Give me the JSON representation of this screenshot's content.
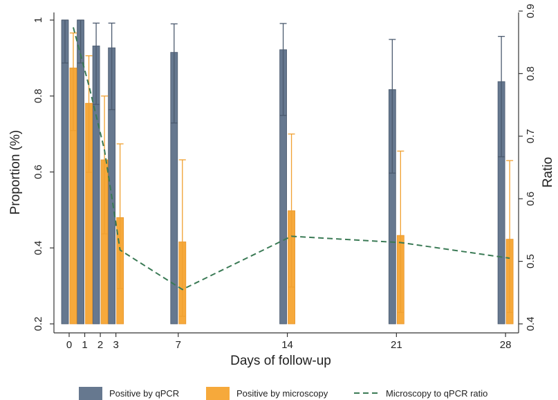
{
  "chart_data": {
    "type": "bar",
    "categories": [
      "0",
      "1",
      "2",
      "3",
      "7",
      "14",
      "21",
      "28"
    ],
    "x_positions": [
      0,
      1,
      2,
      3,
      7,
      14,
      21,
      28
    ],
    "xlabel": "Days of follow-up",
    "ylabel": "Proportion (%)",
    "y2label": "Ratio",
    "ylim": [
      0.2,
      1.0
    ],
    "y2lim": [
      0.4,
      0.9
    ],
    "yticks": [
      "0.2",
      "0.4",
      "0.6",
      "0.8",
      "1"
    ],
    "y2ticks": [
      "0.4",
      "0.5",
      "0.6",
      "0.7",
      "0.8",
      "0.9"
    ],
    "series": [
      {
        "name": "Positive by qPCR",
        "type": "bar",
        "axis": "left",
        "color": "#66788f",
        "values": [
          1.0,
          1.0,
          0.932,
          0.927,
          0.915,
          0.922,
          0.817,
          0.838
        ],
        "ci_low": [
          0.887,
          0.887,
          0.778,
          0.764,
          0.729,
          0.749,
          0.597,
          0.64
        ],
        "ci_high": [
          1.0,
          1.0,
          0.992,
          0.992,
          0.99,
          0.991,
          0.949,
          0.957
        ]
      },
      {
        "name": "Positive by microscopy",
        "type": "bar",
        "axis": "left",
        "color": "#f6a93b",
        "values": [
          0.874,
          0.781,
          0.632,
          0.48,
          0.416,
          0.498,
          0.433,
          0.423
        ],
        "ci_low": [
          0.709,
          0.599,
          0.437,
          0.293,
          0.22,
          0.297,
          0.23,
          0.23
        ],
        "ci_high": [
          0.966,
          0.906,
          0.8,
          0.674,
          0.632,
          0.7,
          0.655,
          0.63
        ]
      },
      {
        "name": "Microscopy to qPCR ratio",
        "type": "line",
        "axis": "right",
        "color": "#3a7a55",
        "values": [
          0.874,
          0.781,
          0.678,
          0.518,
          0.455,
          0.54,
          0.53,
          0.505
        ]
      }
    ],
    "grid": false,
    "legend_position": "bottom"
  }
}
